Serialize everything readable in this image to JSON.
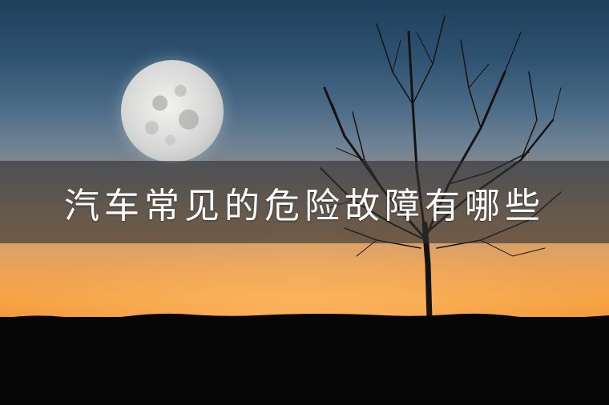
{
  "banner": {
    "title": "汽车常见的危险故障有哪些"
  },
  "scene": {
    "elements": [
      "full-moon",
      "bare-tree",
      "dusk-sky",
      "dark-horizon"
    ],
    "colors": {
      "sky_top": "#1f3f5c",
      "sky_bottom": "#e8892d",
      "ground": "#060606",
      "title_band": "#303030",
      "title_text": "#ffffff"
    }
  }
}
